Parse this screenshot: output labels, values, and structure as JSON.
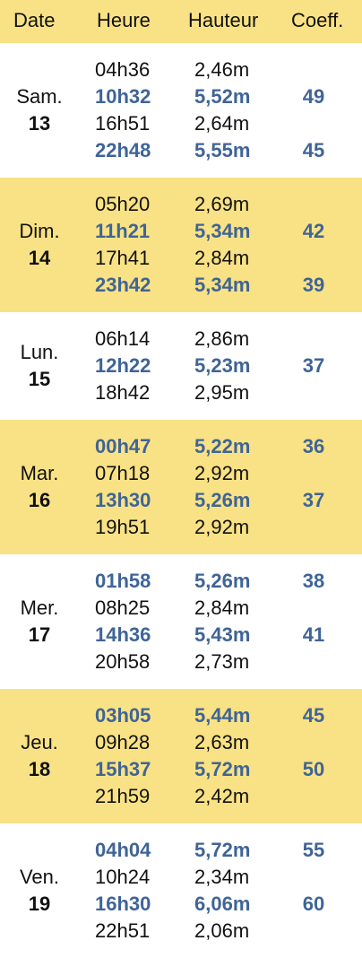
{
  "header": {
    "date": "Date",
    "time": "Heure",
    "height": "Hauteur",
    "coeff": "Coeff."
  },
  "colors": {
    "header_bg": "#f9e285",
    "shaded_bg": "#f9e285",
    "high_tide_text": "#3f6497",
    "low_tide_text": "#111111"
  },
  "days": [
    {
      "dow": "Sam.",
      "num": "13",
      "shaded": false,
      "tides": [
        {
          "time": "04h36",
          "height": "2,46m",
          "coeff": "",
          "high": false
        },
        {
          "time": "10h32",
          "height": "5,52m",
          "coeff": "49",
          "high": true
        },
        {
          "time": "16h51",
          "height": "2,64m",
          "coeff": "",
          "high": false
        },
        {
          "time": "22h48",
          "height": "5,55m",
          "coeff": "45",
          "high": true
        }
      ]
    },
    {
      "dow": "Dim.",
      "num": "14",
      "shaded": true,
      "tides": [
        {
          "time": "05h20",
          "height": "2,69m",
          "coeff": "",
          "high": false
        },
        {
          "time": "11h21",
          "height": "5,34m",
          "coeff": "42",
          "high": true
        },
        {
          "time": "17h41",
          "height": "2,84m",
          "coeff": "",
          "high": false
        },
        {
          "time": "23h42",
          "height": "5,34m",
          "coeff": "39",
          "high": true
        }
      ]
    },
    {
      "dow": "Lun.",
      "num": "15",
      "shaded": false,
      "tides": [
        {
          "time": "06h14",
          "height": "2,86m",
          "coeff": "",
          "high": false
        },
        {
          "time": "12h22",
          "height": "5,23m",
          "coeff": "37",
          "high": true
        },
        {
          "time": "18h42",
          "height": "2,95m",
          "coeff": "",
          "high": false
        }
      ]
    },
    {
      "dow": "Mar.",
      "num": "16",
      "shaded": true,
      "tides": [
        {
          "time": "00h47",
          "height": "5,22m",
          "coeff": "36",
          "high": true
        },
        {
          "time": "07h18",
          "height": "2,92m",
          "coeff": "",
          "high": false
        },
        {
          "time": "13h30",
          "height": "5,26m",
          "coeff": "37",
          "high": true
        },
        {
          "time": "19h51",
          "height": "2,92m",
          "coeff": "",
          "high": false
        }
      ]
    },
    {
      "dow": "Mer.",
      "num": "17",
      "shaded": false,
      "tides": [
        {
          "time": "01h58",
          "height": "5,26m",
          "coeff": "38",
          "high": true
        },
        {
          "time": "08h25",
          "height": "2,84m",
          "coeff": "",
          "high": false
        },
        {
          "time": "14h36",
          "height": "5,43m",
          "coeff": "41",
          "high": true
        },
        {
          "time": "20h58",
          "height": "2,73m",
          "coeff": "",
          "high": false
        }
      ]
    },
    {
      "dow": "Jeu.",
      "num": "18",
      "shaded": true,
      "tides": [
        {
          "time": "03h05",
          "height": "5,44m",
          "coeff": "45",
          "high": true
        },
        {
          "time": "09h28",
          "height": "2,63m",
          "coeff": "",
          "high": false
        },
        {
          "time": "15h37",
          "height": "5,72m",
          "coeff": "50",
          "high": true
        },
        {
          "time": "21h59",
          "height": "2,42m",
          "coeff": "",
          "high": false
        }
      ]
    },
    {
      "dow": "Ven.",
      "num": "19",
      "shaded": false,
      "tides": [
        {
          "time": "04h04",
          "height": "5,72m",
          "coeff": "55",
          "high": true
        },
        {
          "time": "10h24",
          "height": "2,34m",
          "coeff": "",
          "high": false
        },
        {
          "time": "16h30",
          "height": "6,06m",
          "coeff": "60",
          "high": true
        },
        {
          "time": "22h51",
          "height": "2,06m",
          "coeff": "",
          "high": false
        }
      ]
    }
  ]
}
